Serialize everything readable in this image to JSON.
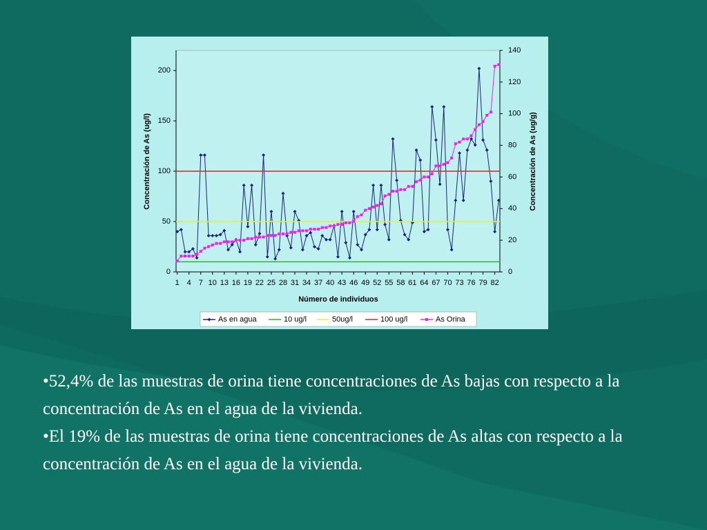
{
  "chart_data": {
    "type": "line",
    "xlabel": "Número de individuos",
    "ylabel": "Concentración de As (ug/l)",
    "y2label": "Concentración de As (ug/g)",
    "x": [
      1,
      2,
      3,
      4,
      5,
      6,
      7,
      8,
      9,
      10,
      11,
      12,
      13,
      14,
      15,
      16,
      17,
      18,
      19,
      20,
      21,
      22,
      23,
      24,
      25,
      26,
      27,
      28,
      29,
      30,
      31,
      32,
      33,
      34,
      35,
      36,
      37,
      38,
      39,
      40,
      41,
      42,
      43,
      44,
      45,
      46,
      47,
      48,
      49,
      50,
      51,
      52,
      53,
      54,
      55,
      56,
      57,
      58,
      59,
      60,
      61,
      62,
      63,
      64,
      65,
      66,
      67,
      68,
      69,
      70,
      71,
      72,
      73,
      74,
      75,
      76,
      77,
      78,
      79,
      80,
      81,
      82,
      83
    ],
    "xlim": [
      0.7,
      83.3
    ],
    "xticks": [
      1,
      4,
      7,
      10,
      13,
      16,
      19,
      22,
      25,
      28,
      31,
      34,
      37,
      40,
      43,
      46,
      49,
      52,
      55,
      58,
      61,
      64,
      67,
      70,
      73,
      76,
      79,
      82
    ],
    "ylim": [
      0,
      220
    ],
    "yticks": [
      0,
      50,
      100,
      150,
      200
    ],
    "y2lim": [
      0,
      140
    ],
    "y2ticks": [
      0,
      20,
      40,
      60,
      80,
      100,
      120,
      140
    ],
    "series": [
      {
        "name": "As en agua",
        "color": "#1a237e",
        "values": [
          40,
          42,
          20,
          20,
          23,
          14,
          116,
          116,
          36,
          36,
          36,
          37,
          41,
          22,
          27,
          32,
          20,
          86,
          45,
          86,
          27,
          38,
          116,
          15,
          60,
          13,
          22,
          78,
          36,
          24,
          60,
          51,
          22,
          36,
          39,
          25,
          23,
          36,
          32,
          32,
          46,
          15,
          60,
          29,
          14,
          60,
          27,
          22,
          37,
          42,
          86,
          42,
          86,
          47,
          32,
          132,
          91,
          51,
          37,
          32,
          49,
          121,
          111,
          40,
          42,
          164,
          131,
          87,
          164,
          42,
          22,
          71,
          118,
          71,
          121,
          132,
          126,
          202,
          131,
          121,
          90,
          40,
          71
        ]
      },
      {
        "name": "10 ug/l",
        "color": "#22bb22",
        "value": 10
      },
      {
        "name": "50ug/l",
        "color": "#eeee22",
        "value": 50
      },
      {
        "name": "100 ug/l",
        "color": "#dd2222",
        "value": 100
      },
      {
        "name": "As Orina",
        "color": "#ee22ee",
        "axis": "y2",
        "values": [
          7,
          10,
          10,
          10,
          10,
          11,
          13,
          15,
          16,
          17,
          18,
          18,
          19,
          19,
          19,
          20,
          20,
          20,
          21,
          21,
          22,
          22,
          22,
          23,
          23,
          23,
          24,
          24,
          24,
          25,
          25,
          26,
          26,
          26,
          27,
          27,
          27,
          28,
          28,
          29,
          29,
          30,
          30,
          31,
          31,
          32,
          35,
          36,
          39,
          40,
          41,
          42,
          43,
          48,
          49,
          51,
          51,
          52,
          52,
          54,
          54,
          57,
          58,
          60,
          60,
          62,
          67,
          67,
          68,
          69,
          72,
          81,
          82,
          84,
          84,
          86,
          90,
          93,
          95,
          99,
          101,
          130,
          131
        ]
      }
    ]
  },
  "text": {
    "bullets": [
      "•52,4% de las muestras de orina tiene concentraciones de As bajas con respecto a la concentración de As en el agua de la vivienda.",
      "•El 19% de las muestras de orina tiene concentraciones de As altas con respecto a la concentración de As en el agua de la vivienda."
    ]
  }
}
